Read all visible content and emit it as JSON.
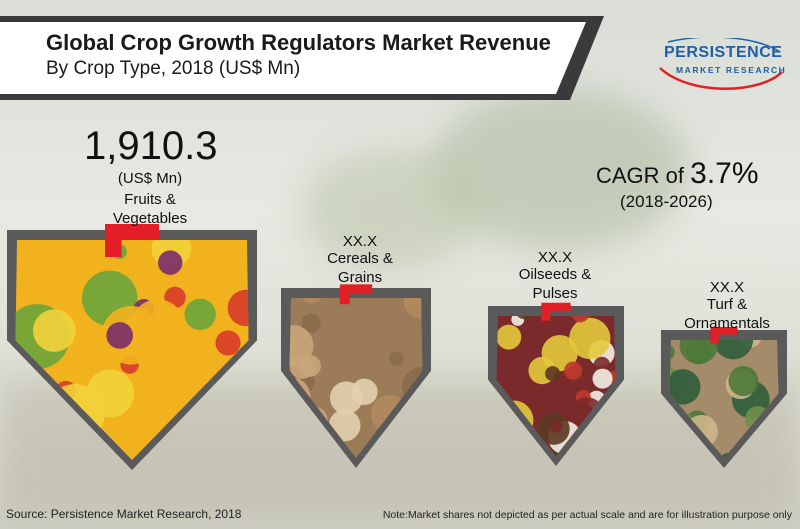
{
  "header": {
    "title": "Global Crop Growth Regulators Market Revenue",
    "subtitle": "By Crop Type, 2018 (US$ Mn)"
  },
  "logo": {
    "main": "PERSISTENCE",
    "sub": "MARKET RESEARCH",
    "colors": {
      "blue": "#1e5fa8",
      "red": "#e21f26"
    }
  },
  "cagr": {
    "prefix": "CAGR of",
    "value": "3.7%",
    "period": "(2018-2026)"
  },
  "chart_data": {
    "type": "bar",
    "title": "Global Crop Growth Regulators Market Revenue",
    "subtitle": "By Crop Type, 2018 (US$ Mn)",
    "categories": [
      "Fruits & Vegetables",
      "Cereals & Grains",
      "Oilseeds & Pulses",
      "Turf & Ornamentals"
    ],
    "values": [
      1910.3,
      null,
      null,
      null
    ],
    "value_labels": [
      "1,910.3",
      "XX.X",
      "XX.X",
      "XX.X"
    ],
    "unit_label": "(US$ Mn)",
    "label_lines": [
      [
        "Fruits &",
        "Vegetables"
      ],
      [
        "Cereals &",
        "Grains"
      ],
      [
        "Oilseeds &",
        "Pulses"
      ],
      [
        "Turf &",
        "Ornamentals"
      ]
    ],
    "marker_color": "#e21f26",
    "frame_color": "#5a5a5a"
  },
  "footer": {
    "source": "Source: Persistence Market Research, 2018",
    "note": "Note:Market shares not depicted as per actual scale and are for illustration purpose only"
  }
}
